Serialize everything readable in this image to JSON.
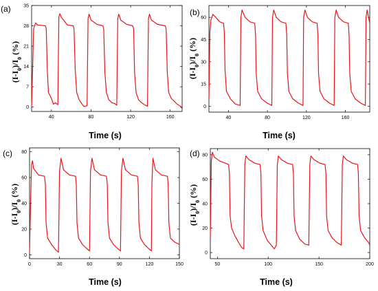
{
  "figure": {
    "style": {
      "line_color": "#e8141b",
      "axis_color": "#000000",
      "background": "#ffffff"
    }
  },
  "chart_data": [
    {
      "panel": "(a)",
      "type": "line",
      "xlabel": "Time (s)",
      "ylabel": "(I-I0)/I0 (%)",
      "xlim": [
        20,
        172
      ],
      "ylim": [
        -1.5,
        35
      ],
      "xticks": [
        40,
        80,
        120,
        160
      ],
      "yticks": [
        0,
        7,
        14,
        21,
        28,
        35
      ],
      "series": [
        {
          "values": [
            [
              20,
              0
            ],
            [
              22,
              27
            ],
            [
              24,
              29
            ],
            [
              26,
              28.3
            ],
            [
              34,
              28
            ],
            [
              34.8,
              27
            ],
            [
              35.8,
              13
            ],
            [
              37,
              5
            ],
            [
              40,
              3
            ],
            [
              42,
              1
            ],
            [
              44,
              1.5
            ],
            [
              46.5,
              0.8
            ],
            [
              47.5,
              31
            ],
            [
              48.5,
              32.2
            ],
            [
              50,
              31
            ],
            [
              56,
              28.3
            ],
            [
              62,
              28
            ],
            [
              62.8,
              27
            ],
            [
              64,
              13
            ],
            [
              65.5,
              5
            ],
            [
              68,
              2.5
            ],
            [
              71,
              1
            ],
            [
              73,
              0.2
            ],
            [
              76,
              0.5
            ],
            [
              77,
              30.5
            ],
            [
              78,
              32
            ],
            [
              80,
              30
            ],
            [
              86,
              28.5
            ],
            [
              92,
              28
            ],
            [
              92.8,
              27
            ],
            [
              94,
              12
            ],
            [
              95.5,
              5
            ],
            [
              98,
              2.5
            ],
            [
              101,
              1.5
            ],
            [
              104,
              1.2
            ],
            [
              106,
              0.6
            ],
            [
              107,
              30.5
            ],
            [
              108,
              32
            ],
            [
              110,
              30
            ],
            [
              116,
              28.5
            ],
            [
              122,
              28
            ],
            [
              123,
              27
            ],
            [
              124,
              12
            ],
            [
              125.5,
              5
            ],
            [
              128,
              2.5
            ],
            [
              131,
              1.5
            ],
            [
              134,
              0.8
            ],
            [
              137,
              0.3
            ],
            [
              138,
              30.5
            ],
            [
              139,
              32
            ],
            [
              141,
              30
            ],
            [
              147,
              28.5
            ],
            [
              155,
              28
            ],
            [
              155.8,
              27
            ],
            [
              157,
              12
            ],
            [
              158.5,
              5
            ],
            [
              161,
              3
            ],
            [
              164,
              2
            ],
            [
              167,
              1
            ],
            [
              170,
              0.4
            ],
            [
              172,
              -0.5
            ]
          ]
        }
      ]
    },
    {
      "panel": "(b)",
      "type": "line",
      "xlabel": "Time (s)",
      "ylabel": "(I-I0)/I0 (%)",
      "xlim": [
        20,
        185
      ],
      "ylim": [
        -4,
        68
      ],
      "xticks": [
        40,
        80,
        120,
        160
      ],
      "yticks": [
        0,
        15,
        30,
        45,
        60
      ],
      "series": [
        {
          "values": [
            [
              20,
              5
            ],
            [
              21,
              50
            ],
            [
              22,
              58
            ],
            [
              24,
              62
            ],
            [
              27,
              60
            ],
            [
              31,
              57
            ],
            [
              35,
              56
            ],
            [
              35.8,
              50
            ],
            [
              36.5,
              25
            ],
            [
              38,
              10
            ],
            [
              42,
              5
            ],
            [
              47,
              1.5
            ],
            [
              52,
              0.5
            ],
            [
              52.8,
              60
            ],
            [
              54,
              65
            ],
            [
              57,
              60
            ],
            [
              62,
              57
            ],
            [
              67,
              56
            ],
            [
              67.8,
              48
            ],
            [
              68.5,
              22
            ],
            [
              70,
              10
            ],
            [
              74,
              5
            ],
            [
              80,
              2
            ],
            [
              84.5,
              0.5
            ],
            [
              85.2,
              60
            ],
            [
              86.5,
              65
            ],
            [
              89,
              60
            ],
            [
              94,
              57
            ],
            [
              99,
              56
            ],
            [
              99.8,
              48
            ],
            [
              100.5,
              22
            ],
            [
              102,
              10
            ],
            [
              106,
              5
            ],
            [
              112,
              2
            ],
            [
              116.5,
              0.5
            ],
            [
              117.2,
              60
            ],
            [
              118.5,
              65
            ],
            [
              121,
              60
            ],
            [
              126,
              57
            ],
            [
              131,
              56
            ],
            [
              131.8,
              48
            ],
            [
              132.5,
              22
            ],
            [
              134,
              10
            ],
            [
              138,
              5
            ],
            [
              144,
              2
            ],
            [
              148.5,
              0.5
            ],
            [
              149.2,
              60
            ],
            [
              150.5,
              65
            ],
            [
              153,
              60
            ],
            [
              158,
              57
            ],
            [
              163,
              56
            ],
            [
              163.8,
              48
            ],
            [
              164.5,
              22
            ],
            [
              166,
              10
            ],
            [
              170,
              5
            ],
            [
              176,
              2
            ],
            [
              180.5,
              0.5
            ],
            [
              181.2,
              60
            ],
            [
              182.3,
              65
            ],
            [
              184,
              59
            ],
            [
              185,
              56
            ]
          ]
        }
      ]
    },
    {
      "panel": "(c)",
      "type": "line",
      "xlabel": "Time (s)",
      "ylabel": "(I-I0)/I0 (%)",
      "xlim": [
        0,
        150
      ],
      "ylim": [
        -3,
        83
      ],
      "xticks": [
        0,
        30,
        60,
        90,
        120,
        150
      ],
      "yticks": [
        0,
        20,
        40,
        60,
        80
      ],
      "series": [
        {
          "values": [
            [
              0,
              2
            ],
            [
              1,
              40
            ],
            [
              2,
              70
            ],
            [
              3,
              73
            ],
            [
              4,
              67
            ],
            [
              9,
              62
            ],
            [
              15,
              61
            ],
            [
              15.8,
              55
            ],
            [
              16.5,
              25
            ],
            [
              18,
              13
            ],
            [
              22,
              8
            ],
            [
              26,
              4
            ],
            [
              29,
              2
            ],
            [
              30,
              65
            ],
            [
              31.5,
              75
            ],
            [
              34,
              66
            ],
            [
              40,
              62
            ],
            [
              46,
              61
            ],
            [
              46.8,
              55
            ],
            [
              47.5,
              25
            ],
            [
              49,
              13
            ],
            [
              53,
              8
            ],
            [
              57,
              5
            ],
            [
              60,
              3
            ],
            [
              61,
              65
            ],
            [
              62.5,
              75
            ],
            [
              65,
              66
            ],
            [
              71,
              62
            ],
            [
              77,
              61
            ],
            [
              77.8,
              55
            ],
            [
              78.5,
              25
            ],
            [
              80,
              13
            ],
            [
              84,
              8
            ],
            [
              88,
              5
            ],
            [
              91,
              3
            ],
            [
              92,
              65
            ],
            [
              93.5,
              75
            ],
            [
              96,
              66
            ],
            [
              102,
              62
            ],
            [
              108,
              61
            ],
            [
              108.8,
              55
            ],
            [
              109.5,
              25
            ],
            [
              111,
              13
            ],
            [
              115,
              8
            ],
            [
              119,
              5
            ],
            [
              122,
              3
            ],
            [
              122.5,
              55
            ],
            [
              123.5,
              75
            ],
            [
              126,
              66
            ],
            [
              132,
              62
            ],
            [
              138,
              61
            ],
            [
              138.8,
              55
            ],
            [
              139.5,
              25
            ],
            [
              141,
              13
            ],
            [
              145,
              10
            ],
            [
              150,
              8
            ]
          ]
        }
      ]
    },
    {
      "panel": "(d)",
      "type": "line",
      "xlabel": "Time (s)",
      "ylabel": "(I-I0)/I0 (%)",
      "xlim": [
        43,
        200
      ],
      "ylim": [
        -5,
        85
      ],
      "xticks": [
        50,
        100,
        150,
        200
      ],
      "yticks": [
        0,
        20,
        40,
        60,
        80
      ],
      "series": [
        {
          "values": [
            [
              43,
              12
            ],
            [
              44,
              75
            ],
            [
              45,
              82
            ],
            [
              47,
              78
            ],
            [
              52,
              75
            ],
            [
              58,
              73
            ],
            [
              61,
              72
            ],
            [
              61.8,
              65
            ],
            [
              62.5,
              30
            ],
            [
              64,
              20
            ],
            [
              67,
              14
            ],
            [
              71,
              8
            ],
            [
              74,
              4
            ],
            [
              76,
              3
            ],
            [
              77,
              72
            ],
            [
              78,
              79
            ],
            [
              81,
              76
            ],
            [
              87,
              73
            ],
            [
              92,
              72
            ],
            [
              92.8,
              65
            ],
            [
              93.5,
              30
            ],
            [
              95,
              18
            ],
            [
              99,
              10
            ],
            [
              103,
              6
            ],
            [
              106,
              3
            ],
            [
              108,
              6
            ],
            [
              109,
              72
            ],
            [
              110,
              79
            ],
            [
              113,
              76
            ],
            [
              119,
              73
            ],
            [
              124,
              72
            ],
            [
              124.8,
              65
            ],
            [
              125.5,
              30
            ],
            [
              127,
              18
            ],
            [
              131,
              11
            ],
            [
              136,
              7
            ],
            [
              140,
              6
            ],
            [
              141,
              72
            ],
            [
              142,
              79
            ],
            [
              145,
              76
            ],
            [
              151,
              73
            ],
            [
              156,
              72
            ],
            [
              156.8,
              65
            ],
            [
              157.5,
              30
            ],
            [
              159,
              18
            ],
            [
              163,
              12
            ],
            [
              168,
              8
            ],
            [
              172,
              6
            ],
            [
              173,
              72
            ],
            [
              174,
              79
            ],
            [
              177,
              76
            ],
            [
              183,
              73
            ],
            [
              188,
              72
            ],
            [
              188.8,
              65
            ],
            [
              189.5,
              30
            ],
            [
              191,
              18
            ],
            [
              195,
              12
            ],
            [
              199,
              8
            ],
            [
              200,
              6
            ]
          ]
        }
      ]
    }
  ]
}
